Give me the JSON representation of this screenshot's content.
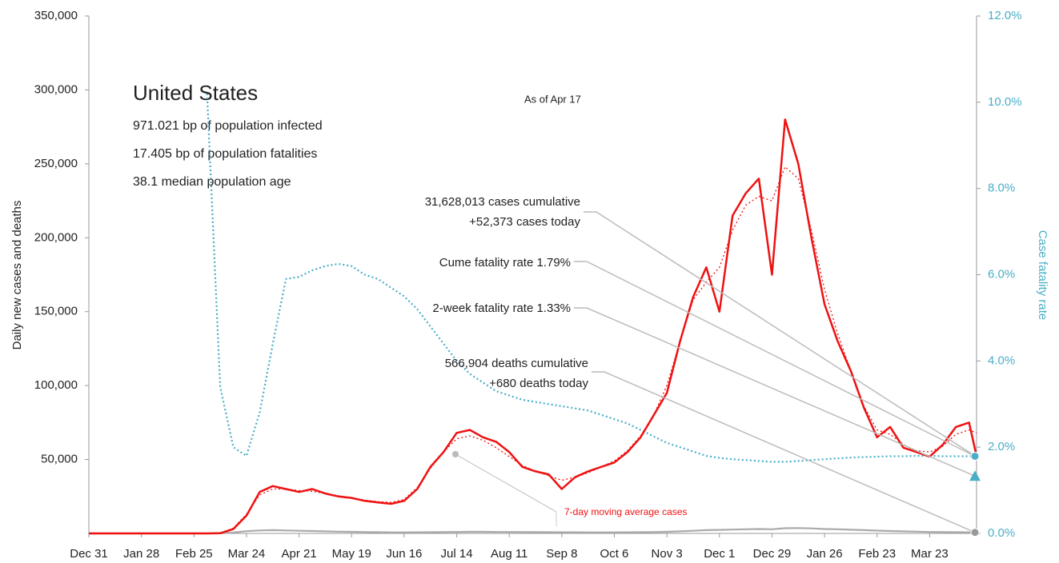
{
  "chart_data": {
    "type": "line",
    "title": "United States",
    "subtitle_lines": [
      "971.021 bp of population infected",
      "17.405 bp of population fatalities",
      "38.1 median population age"
    ],
    "as_of": "As of Apr 17",
    "ylabel": "Daily new cases and deaths",
    "y2label": "Case fatality rate",
    "x": [
      0,
      7,
      14,
      21,
      28,
      35,
      42,
      49,
      56,
      63,
      70,
      77,
      84,
      91,
      98,
      105,
      112,
      119,
      126,
      133,
      140,
      147,
      154,
      161,
      168,
      175,
      182,
      189,
      196,
      203,
      210,
      217,
      224,
      231,
      238,
      245,
      252,
      259,
      266,
      273,
      280,
      287,
      294,
      301,
      308,
      315,
      322,
      329,
      336,
      343,
      350,
      357,
      364,
      371,
      378,
      385,
      392,
      399,
      406,
      413,
      420,
      427,
      434,
      441,
      448,
      455,
      462,
      469,
      473
    ],
    "xlim": [
      0,
      473
    ],
    "xticks": [
      {
        "value": 0,
        "label": "Dec 31"
      },
      {
        "value": 28,
        "label": "Jan 28"
      },
      {
        "value": 56,
        "label": "Feb 25"
      },
      {
        "value": 84,
        "label": "Mar 24"
      },
      {
        "value": 112,
        "label": "Apr 21"
      },
      {
        "value": 140,
        "label": "May 19"
      },
      {
        "value": 168,
        "label": "Jun 16"
      },
      {
        "value": 196,
        "label": "Jul 14"
      },
      {
        "value": 224,
        "label": "Aug 11"
      },
      {
        "value": 252,
        "label": "Sep 8"
      },
      {
        "value": 280,
        "label": "Oct 6"
      },
      {
        "value": 308,
        "label": "Nov 3"
      },
      {
        "value": 336,
        "label": "Dec 1"
      },
      {
        "value": 364,
        "label": "Dec 29"
      },
      {
        "value": 392,
        "label": "Jan 26"
      },
      {
        "value": 420,
        "label": "Feb 23"
      },
      {
        "value": 448,
        "label": "Mar 23"
      }
    ],
    "ylim": [
      0,
      350000
    ],
    "yticks": [
      {
        "value": 50000,
        "label": "50,000"
      },
      {
        "value": 100000,
        "label": "100,000"
      },
      {
        "value": 150000,
        "label": "150,000"
      },
      {
        "value": 200000,
        "label": "200,000"
      },
      {
        "value": 250000,
        "label": "250,000"
      },
      {
        "value": 300000,
        "label": "300,000"
      },
      {
        "value": 350000,
        "label": "350,000"
      }
    ],
    "y2lim": [
      0,
      12
    ],
    "y2ticks": [
      {
        "value": 0,
        "label": "0.0%"
      },
      {
        "value": 2,
        "label": "2.0%"
      },
      {
        "value": 4,
        "label": "4.0%"
      },
      {
        "value": 6,
        "label": "6.0%"
      },
      {
        "value": 8,
        "label": "8.0%"
      },
      {
        "value": 10,
        "label": "10.0%"
      },
      {
        "value": 12,
        "label": "12.0%"
      }
    ],
    "series": [
      {
        "color": "#ee1111",
        "style": "solid",
        "width": 2.5,
        "values": [
          0,
          0,
          0,
          0,
          0,
          0,
          0,
          0,
          0,
          0,
          100,
          3000,
          12000,
          28000,
          32000,
          30000,
          28000,
          30000,
          27000,
          25000,
          24000,
          22000,
          21000,
          20000,
          22000,
          30000,
          45000,
          55000,
          68000,
          70000,
          65000,
          62000,
          55000,
          45000,
          42000,
          40000,
          30000,
          38000,
          42000,
          45000,
          48000,
          55000,
          65000,
          80000,
          95000,
          130000,
          160000,
          180000,
          150000,
          215000,
          230000,
          240000,
          175000,
          280000,
          250000,
          200000,
          155000,
          130000,
          110000,
          85000,
          65000,
          72000,
          58000,
          55000,
          52000,
          60000,
          72000,
          75000,
          52373
        ]
      },
      {
        "name": "7-day moving average cases",
        "color": "#ee1111",
        "style": "dotted",
        "width": 1.3,
        "values": [
          0,
          0,
          0,
          0,
          0,
          0,
          0,
          0,
          0,
          0,
          300,
          3500,
          13000,
          26000,
          30000,
          30000,
          29000,
          28500,
          27000,
          25500,
          24000,
          22500,
          21500,
          21000,
          23000,
          31000,
          44000,
          55000,
          64000,
          66000,
          63000,
          58000,
          52000,
          46000,
          42000,
          39000,
          36000,
          38000,
          41000,
          45000,
          49000,
          56000,
          66000,
          80000,
          100000,
          130000,
          158000,
          170000,
          180000,
          205000,
          222000,
          228000,
          225000,
          248000,
          240000,
          205000,
          165000,
          135000,
          110000,
          86000,
          70000,
          67000,
          60000,
          56000,
          55000,
          59000,
          67000,
          70000,
          68000
        ]
      },
      {
        "color": "#4aaec8",
        "style": "dotted",
        "width": 2.2,
        "axis": "y2",
        "values": [
          null,
          null,
          null,
          null,
          null,
          null,
          null,
          null,
          null,
          10.2,
          3.4,
          2.0,
          1.8,
          2.8,
          4.4,
          5.9,
          5.95,
          6.1,
          6.2,
          6.25,
          6.2,
          6.0,
          5.9,
          5.7,
          5.5,
          5.2,
          4.8,
          4.4,
          4.0,
          3.7,
          3.5,
          3.3,
          3.2,
          3.1,
          3.05,
          3.0,
          2.95,
          2.9,
          2.85,
          2.75,
          2.65,
          2.55,
          2.4,
          2.25,
          2.1,
          2.0,
          1.9,
          1.8,
          1.75,
          1.72,
          1.7,
          1.68,
          1.66,
          1.66,
          1.68,
          1.7,
          1.72,
          1.74,
          1.76,
          1.77,
          1.78,
          1.79,
          1.79,
          1.8,
          1.8,
          1.79,
          1.79,
          1.79,
          1.79
        ]
      },
      {
        "color": "#aaaaaa",
        "style": "solid",
        "width": 2.2,
        "values": [
          0,
          0,
          0,
          0,
          0,
          0,
          0,
          0,
          0,
          0,
          100,
          600,
          1500,
          2000,
          2200,
          2000,
          1800,
          1600,
          1400,
          1200,
          1100,
          900,
          800,
          700,
          700,
          750,
          800,
          900,
          1000,
          1100,
          1100,
          1000,
          1000,
          900,
          850,
          800,
          750,
          750,
          700,
          700,
          700,
          750,
          800,
          900,
          1100,
          1400,
          1800,
          2200,
          2400,
          2600,
          2800,
          3000,
          2800,
          3500,
          3600,
          3400,
          3000,
          2800,
          2500,
          2200,
          1900,
          1600,
          1400,
          1200,
          1000,
          900,
          800,
          750,
          680
        ]
      }
    ],
    "annotations": [
      {
        "lines": [
          "31,628,013 cases cumulative",
          "+52,373 cases today"
        ],
        "value": 52373,
        "axis": "y",
        "color": "#888888"
      },
      {
        "lines": [
          "Cume fatality rate 1.79%"
        ],
        "value": 1.79,
        "axis": "y2",
        "marker": "circle",
        "color": "#4aaec8"
      },
      {
        "lines": [
          "2-week fatality rate 1.33%"
        ],
        "value": 1.33,
        "axis": "y2",
        "marker": "triangle",
        "color": "#4aaec8"
      },
      {
        "lines": [
          "566,904 deaths cumulative",
          "+680 deaths today"
        ],
        "value": 680,
        "axis": "y",
        "marker": "circle",
        "color": "#999999"
      }
    ]
  }
}
